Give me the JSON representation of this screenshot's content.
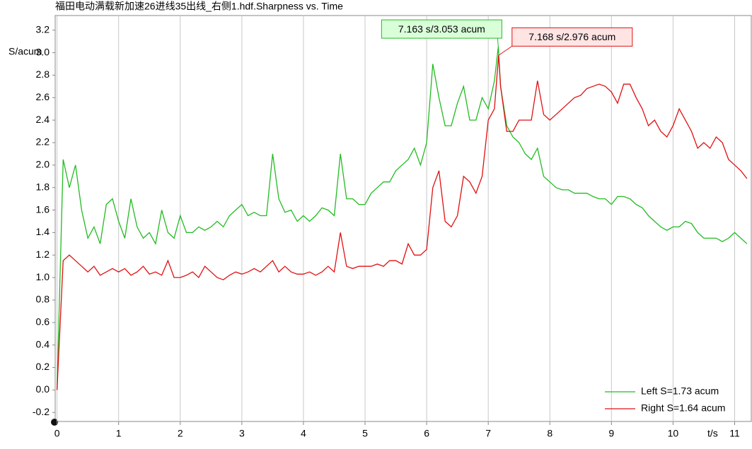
{
  "chart_data": {
    "type": "line",
    "title": "福田电动满载新加速26进线35出线_右侧1.hdf.Sharpness vs. Time",
    "y_label": "S/acum",
    "x_label": "t/s",
    "xlim": [
      -0.03,
      11.27
    ],
    "ylim": [
      -0.28,
      3.33
    ],
    "xticks": [
      0,
      1,
      2,
      3,
      4,
      5,
      6,
      7,
      8,
      9,
      10,
      11
    ],
    "yticks": [
      -0.2,
      {
        "value": 0,
        "label": "0.0"
      },
      0.2,
      0.4,
      0.6,
      0.8,
      {
        "value": 1,
        "label": "1.0"
      },
      1.2,
      1.4,
      1.6,
      1.8,
      {
        "value": 2,
        "label": "2.0"
      },
      2.2,
      2.4,
      2.6,
      2.8,
      {
        "value": 3,
        "label": "3.0"
      },
      3.2
    ],
    "grid": true,
    "legend": "lower right",
    "series": [
      {
        "name": "Left S=1.73 acum",
        "color": "#22bb22",
        "x": [
          0,
          0.1,
          0.2,
          0.3,
          0.4,
          0.5,
          0.6,
          0.7,
          0.8,
          0.9,
          1.0,
          1.1,
          1.2,
          1.3,
          1.4,
          1.5,
          1.6,
          1.7,
          1.8,
          1.9,
          2.0,
          2.1,
          2.2,
          2.3,
          2.4,
          2.5,
          2.6,
          2.7,
          2.8,
          2.9,
          3.0,
          3.1,
          3.2,
          3.3,
          3.4,
          3.5,
          3.6,
          3.7,
          3.8,
          3.9,
          4.0,
          4.1,
          4.2,
          4.3,
          4.4,
          4.5,
          4.6,
          4.7,
          4.8,
          4.9,
          5.0,
          5.1,
          5.2,
          5.3,
          5.4,
          5.5,
          5.6,
          5.7,
          5.8,
          5.9,
          6.0,
          6.1,
          6.2,
          6.3,
          6.4,
          6.5,
          6.6,
          6.7,
          6.8,
          6.9,
          7.0,
          7.1,
          7.163,
          7.2,
          7.3,
          7.4,
          7.5,
          7.6,
          7.7,
          7.8,
          7.9,
          8.0,
          8.1,
          8.2,
          8.3,
          8.4,
          8.5,
          8.6,
          8.7,
          8.8,
          8.9,
          9.0,
          9.1,
          9.2,
          9.3,
          9.4,
          9.5,
          9.6,
          9.7,
          9.8,
          9.9,
          10.0,
          10.1,
          10.2,
          10.3,
          10.4,
          10.5,
          10.6,
          10.7,
          10.8,
          10.9,
          11.0,
          11.1,
          11.2
        ],
        "values": [
          0.0,
          2.05,
          1.8,
          2.0,
          1.6,
          1.35,
          1.45,
          1.3,
          1.65,
          1.7,
          1.5,
          1.35,
          1.7,
          1.45,
          1.35,
          1.4,
          1.3,
          1.6,
          1.4,
          1.35,
          1.55,
          1.4,
          1.4,
          1.45,
          1.42,
          1.45,
          1.5,
          1.45,
          1.55,
          1.6,
          1.65,
          1.55,
          1.58,
          1.55,
          1.55,
          2.1,
          1.7,
          1.58,
          1.6,
          1.5,
          1.55,
          1.5,
          1.55,
          1.62,
          1.6,
          1.55,
          2.1,
          1.7,
          1.7,
          1.65,
          1.65,
          1.75,
          1.8,
          1.85,
          1.85,
          1.95,
          2.0,
          2.05,
          2.15,
          2.0,
          2.2,
          2.9,
          2.6,
          2.35,
          2.35,
          2.55,
          2.7,
          2.4,
          2.4,
          2.6,
          2.5,
          2.75,
          3.053,
          2.7,
          2.35,
          2.25,
          2.2,
          2.1,
          2.05,
          2.15,
          1.9,
          1.85,
          1.8,
          1.78,
          1.78,
          1.75,
          1.75,
          1.75,
          1.72,
          1.7,
          1.7,
          1.65,
          1.72,
          1.72,
          1.7,
          1.65,
          1.62,
          1.55,
          1.5,
          1.45,
          1.42,
          1.45,
          1.45,
          1.5,
          1.48,
          1.4,
          1.35,
          1.35,
          1.35,
          1.32,
          1.35,
          1.4,
          1.35,
          1.3
        ]
      },
      {
        "name": "Right S=1.64 acum",
        "color": "#e01010",
        "x": [
          0,
          0.1,
          0.2,
          0.3,
          0.4,
          0.5,
          0.6,
          0.7,
          0.8,
          0.9,
          1.0,
          1.1,
          1.2,
          1.3,
          1.4,
          1.5,
          1.6,
          1.7,
          1.8,
          1.9,
          2.0,
          2.1,
          2.2,
          2.3,
          2.4,
          2.5,
          2.6,
          2.7,
          2.8,
          2.9,
          3.0,
          3.1,
          3.2,
          3.3,
          3.4,
          3.5,
          3.6,
          3.7,
          3.8,
          3.9,
          4.0,
          4.1,
          4.2,
          4.3,
          4.4,
          4.5,
          4.6,
          4.7,
          4.8,
          4.9,
          5.0,
          5.1,
          5.2,
          5.3,
          5.4,
          5.5,
          5.6,
          5.7,
          5.8,
          5.9,
          6.0,
          6.1,
          6.2,
          6.3,
          6.4,
          6.5,
          6.6,
          6.7,
          6.8,
          6.9,
          7.0,
          7.1,
          7.168,
          7.2,
          7.3,
          7.4,
          7.5,
          7.6,
          7.7,
          7.8,
          7.9,
          8.0,
          8.1,
          8.2,
          8.3,
          8.4,
          8.5,
          8.6,
          8.7,
          8.8,
          8.9,
          9.0,
          9.1,
          9.2,
          9.3,
          9.4,
          9.5,
          9.6,
          9.7,
          9.8,
          9.9,
          10.0,
          10.1,
          10.2,
          10.3,
          10.4,
          10.5,
          10.6,
          10.7,
          10.8,
          10.9,
          11.0,
          11.1,
          11.2
        ],
        "values": [
          0.0,
          1.15,
          1.2,
          1.15,
          1.1,
          1.05,
          1.1,
          1.02,
          1.05,
          1.08,
          1.05,
          1.08,
          1.02,
          1.05,
          1.1,
          1.03,
          1.05,
          1.02,
          1.15,
          1.0,
          1.0,
          1.02,
          1.05,
          1.0,
          1.1,
          1.05,
          1.0,
          0.98,
          1.02,
          1.05,
          1.03,
          1.05,
          1.08,
          1.05,
          1.1,
          1.15,
          1.05,
          1.1,
          1.05,
          1.03,
          1.03,
          1.05,
          1.02,
          1.05,
          1.1,
          1.05,
          1.4,
          1.1,
          1.08,
          1.1,
          1.1,
          1.1,
          1.12,
          1.1,
          1.15,
          1.15,
          1.12,
          1.3,
          1.2,
          1.2,
          1.25,
          1.8,
          1.95,
          1.5,
          1.45,
          1.55,
          1.9,
          1.85,
          1.75,
          1.9,
          2.4,
          2.5,
          2.976,
          2.7,
          2.3,
          2.3,
          2.4,
          2.4,
          2.4,
          2.75,
          2.45,
          2.4,
          2.45,
          2.5,
          2.55,
          2.6,
          2.62,
          2.68,
          2.7,
          2.72,
          2.7,
          2.65,
          2.55,
          2.72,
          2.72,
          2.6,
          2.5,
          2.35,
          2.4,
          2.3,
          2.25,
          2.35,
          2.5,
          2.4,
          2.3,
          2.15,
          2.2,
          2.15,
          2.25,
          2.2,
          2.05,
          2.0,
          1.95,
          1.88
        ]
      }
    ],
    "annotations": [
      "7.163 s/3.053 acum",
      "7.168 s/2.976 acum"
    ]
  }
}
